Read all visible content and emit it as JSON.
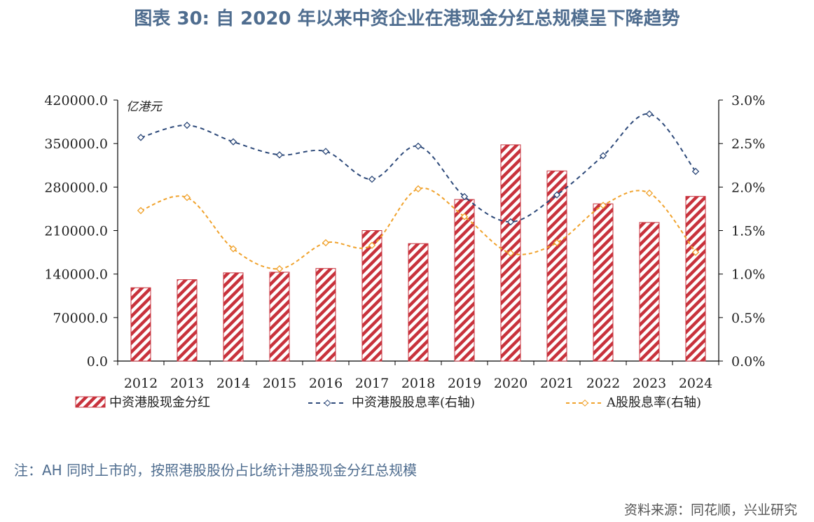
{
  "title": "图表 30: 自 2020 年以来中资企业在港现金分红总规模呈下降趋势",
  "note": "注：AH 同时上市的，按照港股股份占比统计港股现金分红总规模",
  "source": "资料来源：同花顺，兴业研究",
  "chart_data": {
    "type": "bar",
    "unit_label": "亿港元",
    "categories": [
      "2012",
      "2013",
      "2014",
      "2015",
      "2016",
      "2017",
      "2018",
      "2019",
      "2020",
      "2021",
      "2022",
      "2023",
      "2024"
    ],
    "series": [
      {
        "name": "中资港股现金分红",
        "type": "bar",
        "axis": "left",
        "values": [
          118000,
          131000,
          142000,
          143000,
          149000,
          210000,
          189000,
          260000,
          348000,
          306000,
          253000,
          223000,
          265000
        ]
      },
      {
        "name": "中资港股股息率(右轴)",
        "type": "line",
        "axis": "right",
        "values": [
          2.57,
          2.71,
          2.52,
          2.37,
          2.41,
          2.09,
          2.47,
          1.89,
          1.6,
          1.91,
          2.36,
          2.84,
          2.18
        ]
      },
      {
        "name": "A股股息率(右轴)",
        "type": "line",
        "axis": "right",
        "values": [
          1.73,
          1.88,
          1.29,
          1.06,
          1.36,
          1.33,
          1.98,
          1.66,
          1.24,
          1.36,
          1.79,
          1.93,
          1.25
        ]
      }
    ],
    "y_left": {
      "ticks": [
        "0.0",
        "70000.0",
        "140000.0",
        "210000.0",
        "280000.0",
        "350000.0",
        "420000.0"
      ],
      "ylim": [
        0,
        420000
      ]
    },
    "y_right": {
      "ticks": [
        "0.0%",
        "0.5%",
        "1.0%",
        "1.5%",
        "2.0%",
        "2.5%",
        "3.0%"
      ],
      "ylim": [
        0,
        3.0
      ]
    },
    "colors": {
      "bar": "#c8323c",
      "hk_line": "#2e4a7a",
      "a_line": "#f0a22c",
      "axis": "#000000"
    },
    "legend_position": "bottom"
  }
}
